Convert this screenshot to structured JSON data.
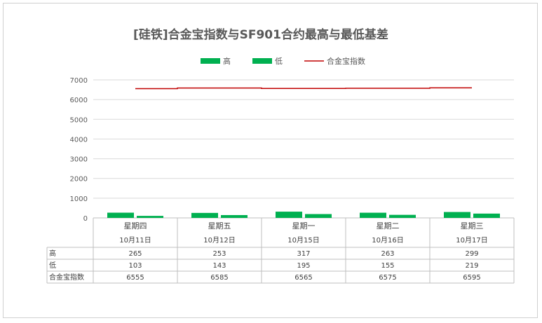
{
  "chart_data": {
    "type": "bar",
    "title": "[硅铁]合金宝指数与SF901合约最高与最低基差",
    "categories": [
      {
        "weekday": "星期四",
        "date": "10月11日"
      },
      {
        "weekday": "星期五",
        "date": "10月12日"
      },
      {
        "weekday": "星期一",
        "date": "10月15日"
      },
      {
        "weekday": "星期二",
        "date": "10月16日"
      },
      {
        "weekday": "星期三",
        "date": "10月17日"
      }
    ],
    "series": [
      {
        "name": "高",
        "type": "bar",
        "color": "#00B050",
        "values": [
          265,
          253,
          317,
          263,
          299
        ]
      },
      {
        "name": "低",
        "type": "bar",
        "color": "#00B050",
        "values": [
          103,
          143,
          195,
          155,
          219
        ]
      },
      {
        "name": "合金宝指数",
        "type": "line",
        "color": "#C00000",
        "values": [
          6555,
          6585,
          6565,
          6575,
          6595
        ]
      }
    ],
    "yaxis": {
      "min": 0,
      "max": 7000,
      "ticks": [
        0,
        1000,
        2000,
        3000,
        4000,
        5000,
        6000,
        7000
      ]
    },
    "grid": true,
    "legend": "top",
    "data_table": true
  }
}
